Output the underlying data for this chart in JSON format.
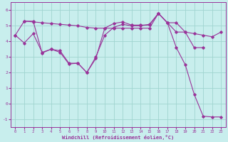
{
  "xlabel": "Windchill (Refroidissement éolien,°C)",
  "bg_color": "#c8eeed",
  "line_color": "#993399",
  "grid_color": "#a0d4d0",
  "xlim": [
    0,
    23
  ],
  "ylim": [
    -1.5,
    6.5
  ],
  "yticks": [
    -1,
    0,
    1,
    2,
    3,
    4,
    5,
    6
  ],
  "xticks": [
    0,
    1,
    2,
    3,
    4,
    5,
    6,
    7,
    8,
    9,
    10,
    11,
    12,
    13,
    14,
    15,
    16,
    17,
    18,
    19,
    20,
    21,
    22,
    23
  ],
  "series1_x": [
    0,
    1,
    2,
    3,
    4,
    5,
    6,
    7,
    8,
    9,
    10,
    11,
    12,
    13,
    14,
    15,
    16,
    17,
    18,
    19,
    20,
    21,
    22,
    23
  ],
  "series1_y": [
    4.4,
    5.3,
    5.25,
    5.2,
    5.15,
    5.1,
    5.05,
    5.0,
    4.9,
    4.85,
    4.85,
    4.85,
    4.85,
    4.85,
    4.85,
    4.85,
    5.8,
    5.2,
    4.6,
    4.6,
    4.5,
    4.4,
    4.3,
    4.6
  ],
  "series2_x": [
    0,
    1,
    2,
    3,
    4,
    5,
    6,
    7,
    8,
    9,
    10,
    11,
    12,
    13,
    14,
    15,
    16,
    17,
    18,
    19,
    20,
    21,
    22,
    23
  ],
  "series2_y": [
    4.4,
    3.9,
    4.5,
    3.3,
    3.5,
    3.4,
    2.6,
    2.6,
    2.0,
    3.0,
    4.4,
    4.9,
    5.1,
    5.0,
    5.0,
    5.1,
    5.8,
    5.2,
    3.6,
    2.5,
    0.6,
    -0.8,
    -0.85,
    -0.85
  ],
  "series3_x": [
    1,
    2,
    3,
    4,
    5,
    6,
    7,
    8,
    9,
    10,
    11,
    12,
    13,
    14,
    15,
    16,
    17,
    18,
    19,
    20,
    21
  ],
  "series3_y": [
    5.3,
    5.3,
    3.25,
    3.5,
    3.3,
    2.55,
    2.6,
    2.0,
    2.9,
    4.85,
    5.15,
    5.25,
    5.05,
    5.05,
    5.05,
    5.8,
    5.2,
    5.2,
    4.6,
    3.6,
    3.6
  ]
}
